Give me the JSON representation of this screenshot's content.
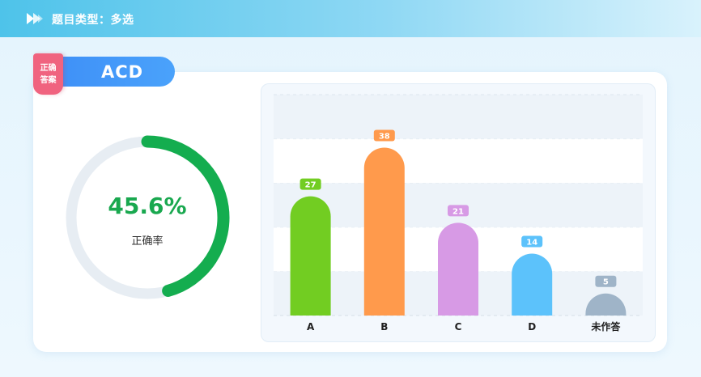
{
  "header": {
    "title": "题目类型：多选",
    "icon": "double-arrow-icon"
  },
  "answer": {
    "badge_line1": "正确",
    "badge_line2": "答案",
    "value": "ACD"
  },
  "accuracy": {
    "value_text": "45.6%",
    "fraction": 0.456,
    "label": "正确率",
    "ring_color": "#14ad4f",
    "track_color": "#e7edf3"
  },
  "chart_data": {
    "type": "bar",
    "categories": [
      "A",
      "B",
      "C",
      "D",
      "未作答"
    ],
    "values": [
      27,
      38,
      21,
      14,
      5
    ],
    "colors": [
      "#72cd22",
      "#ff9a4c",
      "#d79ae5",
      "#5cc2fb",
      "#9fb4c8"
    ],
    "ylim": [
      0,
      50
    ],
    "grid": true
  }
}
